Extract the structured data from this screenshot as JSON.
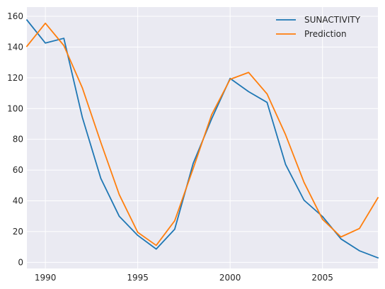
{
  "chart_data": {
    "type": "line",
    "title": "",
    "xlabel": "",
    "ylabel": "",
    "xlim": [
      1989,
      2008
    ],
    "ylim": [
      -4,
      166
    ],
    "grid": true,
    "legend_position": "top-right",
    "x_ticks": [
      1990,
      1995,
      2000,
      2005
    ],
    "y_ticks": [
      0,
      20,
      40,
      60,
      80,
      100,
      120,
      140,
      160
    ],
    "x_tick_labels": [
      "1990",
      "1995",
      "2000",
      "2005"
    ],
    "y_tick_labels": [
      "0",
      "20",
      "40",
      "60",
      "80",
      "100",
      "120",
      "140",
      "160"
    ],
    "series": [
      {
        "name": "SUNACTIVITY",
        "color": "#1f77b4",
        "x": [
          1989,
          1990,
          1991,
          1992,
          1993,
          1994,
          1995,
          1996,
          1997,
          1998,
          1999,
          2000,
          2001,
          2002,
          2003,
          2004,
          2005,
          2006,
          2007,
          2008
        ],
        "y": [
          157.6,
          142.6,
          145.7,
          94.3,
          54.6,
          29.9,
          17.5,
          8.6,
          21.5,
          64.3,
          93.3,
          119.6,
          111.0,
          104.0,
          63.7,
          40.4,
          29.8,
          15.2,
          7.5,
          2.9
        ]
      },
      {
        "name": "Prediction",
        "color": "#ff7f0e",
        "x": [
          1989,
          1990,
          1991,
          1992,
          1993,
          1994,
          1995,
          1996,
          1997,
          1998,
          1999,
          2000,
          2001,
          2002,
          2003,
          2004,
          2005,
          2006,
          2007,
          2008
        ],
        "y": [
          140.5,
          155.5,
          141.0,
          113.5,
          78.0,
          44.0,
          19.5,
          11.0,
          27.0,
          61.0,
          96.0,
          119.0,
          123.5,
          109.5,
          83.0,
          52.0,
          28.0,
          16.5,
          22.0,
          42.0
        ]
      }
    ]
  }
}
